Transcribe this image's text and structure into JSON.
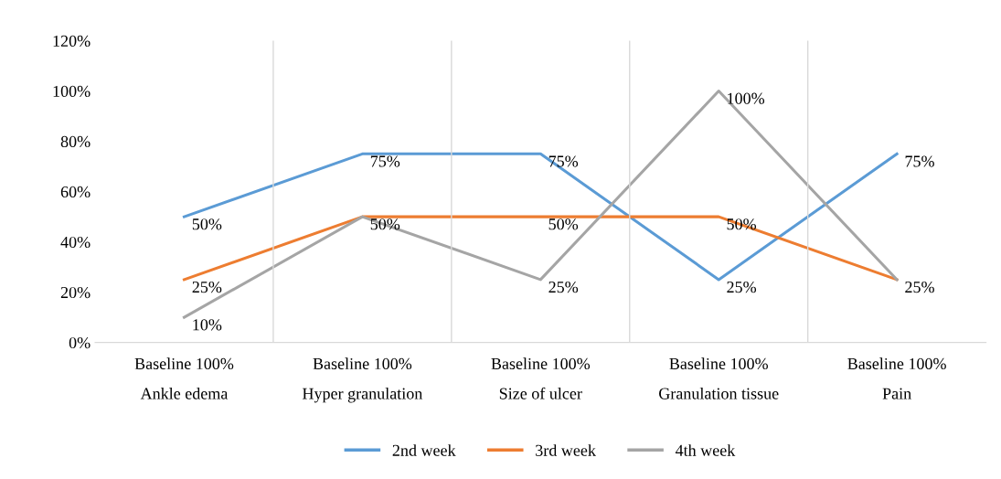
{
  "chart_data": {
    "type": "line",
    "categories": [
      "Baseline 100%\nAnkle edema",
      "Baseline 100%\nHyper granulation",
      "Baseline 100%\nSize of ulcer",
      "Baseline 100%\nGranulation tissue",
      "Baseline 100%\nPain"
    ],
    "series": [
      {
        "name": "2nd week",
        "color": "#5b9bd5",
        "values": [
          50,
          75,
          75,
          25,
          75
        ],
        "value_labels": [
          "50%",
          "75%",
          "75%",
          "25%",
          "75%"
        ]
      },
      {
        "name": "3rd week",
        "color": "#ed7d31",
        "values": [
          25,
          50,
          50,
          50,
          25
        ],
        "value_labels": [
          "25%",
          null,
          "50%",
          "50%",
          null
        ]
      },
      {
        "name": "4th week",
        "color": "#a5a5a5",
        "values": [
          10,
          50,
          25,
          100,
          25
        ],
        "value_labels": [
          "10%",
          "50%",
          "25%",
          "100%",
          "25%"
        ]
      }
    ],
    "ylim": [
      0,
      120
    ],
    "yticks": [
      {
        "value": 0,
        "label": "0%"
      },
      {
        "value": 20,
        "label": "20%"
      },
      {
        "value": 40,
        "label": "40%"
      },
      {
        "value": 60,
        "label": "60%"
      },
      {
        "value": 80,
        "label": "80%"
      },
      {
        "value": 100,
        "label": "100%"
      },
      {
        "value": 120,
        "label": "120%"
      }
    ],
    "legend": "bottom",
    "grid": false,
    "marker": "none",
    "line_style": "solid"
  }
}
